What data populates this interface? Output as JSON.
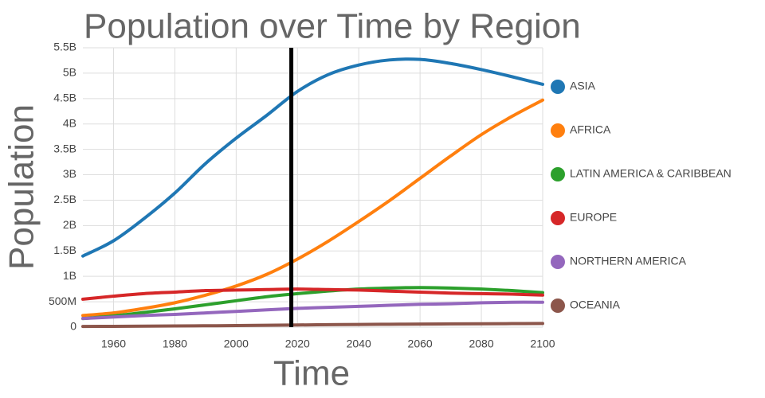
{
  "chart_data": {
    "type": "line",
    "title": "Population over Time by Region",
    "x_label": "Time",
    "y_label": "Population",
    "x": [
      1950,
      1960,
      1970,
      1980,
      1990,
      2000,
      2010,
      2020,
      2030,
      2040,
      2050,
      2060,
      2070,
      2080,
      2090,
      2100
    ],
    "xlim": [
      1950,
      2100
    ],
    "xticks": [
      1960,
      1980,
      2000,
      2020,
      2040,
      2060,
      2080,
      2100
    ],
    "ylim": [
      0,
      5500000000
    ],
    "yticks": [
      0,
      {
        "value": 500000000,
        "label": "500M"
      },
      {
        "value": 1000000000,
        "label": "1B"
      },
      {
        "value": 1500000000,
        "label": "1.5B"
      },
      {
        "value": 2000000000,
        "label": "2B"
      },
      {
        "value": 2500000000,
        "label": "2.5B"
      },
      {
        "value": 3000000000,
        "label": "3B"
      },
      {
        "value": 3500000000,
        "label": "3.5B"
      },
      {
        "value": 4000000000,
        "label": "4B"
      },
      {
        "value": 4500000000,
        "label": "4.5B"
      },
      {
        "value": 5000000000,
        "label": "5B"
      },
      {
        "value": 5500000000,
        "label": "5.5B"
      }
    ],
    "grid": true,
    "legend": "right",
    "marker_x": 2018,
    "series": [
      {
        "name": "ASIA",
        "color": "#1f77b4",
        "values": [
          1400000000,
          1700000000,
          2140000000,
          2640000000,
          3220000000,
          3720000000,
          4170000000,
          4640000000,
          4970000000,
          5160000000,
          5260000000,
          5270000000,
          5190000000,
          5070000000,
          4930000000,
          4780000000
        ]
      },
      {
        "name": "AFRICA",
        "color": "#ff7f0e",
        "values": [
          230000000,
          280000000,
          370000000,
          480000000,
          630000000,
          810000000,
          1040000000,
          1340000000,
          1690000000,
          2080000000,
          2490000000,
          2930000000,
          3370000000,
          3790000000,
          4150000000,
          4470000000
        ]
      },
      {
        "name": "LATIN AMERICA & CARIBBEAN",
        "color": "#2ca02c",
        "values": [
          170000000,
          220000000,
          290000000,
          360000000,
          440000000,
          520000000,
          600000000,
          660000000,
          710000000,
          750000000,
          770000000,
          780000000,
          770000000,
          750000000,
          720000000,
          680000000
        ]
      },
      {
        "name": "EUROPE",
        "color": "#d62728",
        "values": [
          550000000,
          610000000,
          660000000,
          690000000,
          720000000,
          730000000,
          740000000,
          750000000,
          740000000,
          730000000,
          710000000,
          690000000,
          670000000,
          660000000,
          650000000,
          630000000
        ]
      },
      {
        "name": "NORTHERN AMERICA",
        "color": "#9467bd",
        "values": [
          170000000,
          200000000,
          230000000,
          250000000,
          280000000,
          310000000,
          340000000,
          370000000,
          390000000,
          410000000,
          430000000,
          450000000,
          460000000,
          480000000,
          490000000,
          490000000
        ]
      },
      {
        "name": "OCEANIA",
        "color": "#8c564b",
        "values": [
          13000000,
          16000000,
          20000000,
          23000000,
          27000000,
          31000000,
          37000000,
          43000000,
          48000000,
          53000000,
          57000000,
          61000000,
          64000000,
          67000000,
          70000000,
          72000000
        ]
      }
    ]
  }
}
